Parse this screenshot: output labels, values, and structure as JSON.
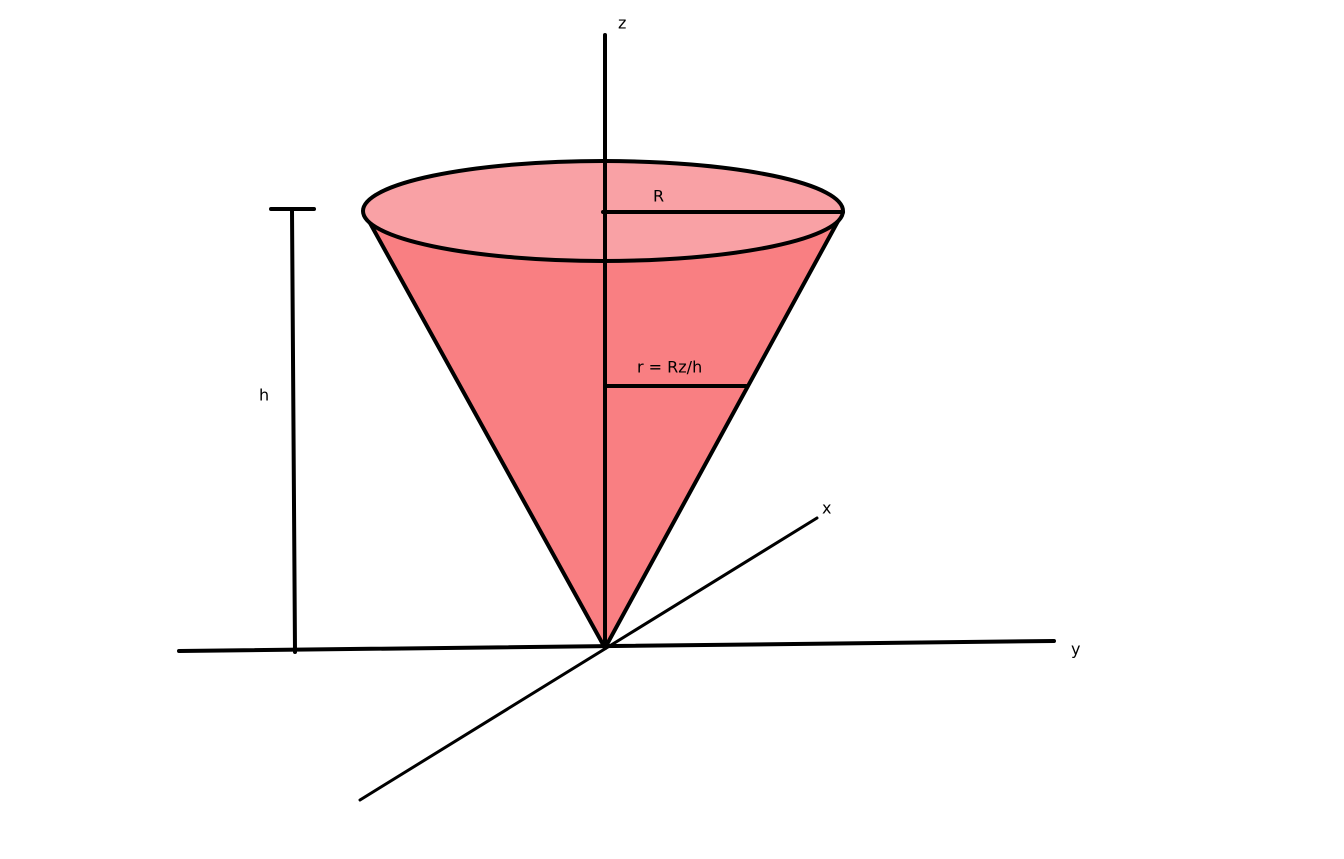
{
  "labels": {
    "z_axis": "z",
    "radius": "R",
    "radius_at_z": "r = Rz/h",
    "height": "h",
    "x_axis": "x",
    "y_axis": "y"
  }
}
